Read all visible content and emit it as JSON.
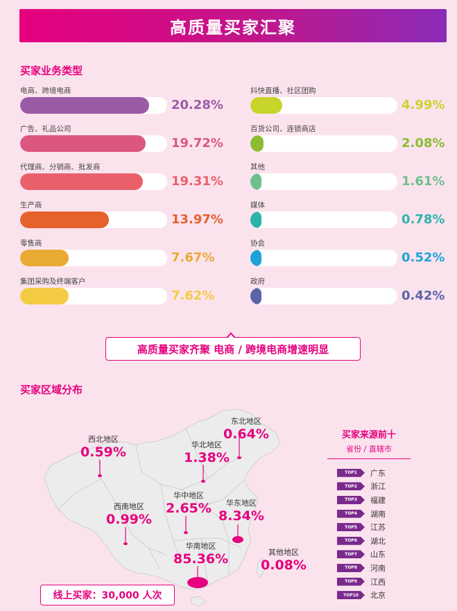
{
  "banner_title": "高质量买家汇聚",
  "section1_title": "买家业务类型",
  "section2_title": "买家区域分布",
  "callout_text": "高质量买家齐聚  电商 / 跨境电商增速明显",
  "online_text": "线上买家：30,000 人次",
  "chart_data": [
    {
      "type": "bar",
      "orientation": "horizontal",
      "unit": "%",
      "xlim": [
        0,
        22
      ],
      "categories": [
        "电商、跨境电商",
        "广告、礼品公司",
        "代理商、分销商、批发商",
        "生产商",
        "零售商",
        "集团采购及终端客户",
        "抖快直播、社区团购",
        "百货公司、连锁商店",
        "其他",
        "媒体",
        "协会",
        "政府"
      ],
      "values": [
        20.28,
        19.72,
        19.31,
        13.97,
        7.67,
        7.62,
        4.99,
        2.08,
        1.61,
        0.78,
        0.52,
        0.42
      ],
      "labels": [
        "20.28%",
        "19.72%",
        "19.31%",
        "13.97%",
        "7.67%",
        "7.62%",
        "4.99%",
        "2.08%",
        "1.61%",
        "0.78%",
        "0.52%",
        "0.42%"
      ],
      "colors": [
        "#9b5ba5",
        "#db5780",
        "#e9606a",
        "#e5622c",
        "#e9aa33",
        "#f4cc43",
        "#c7d52a",
        "#8cbc31",
        "#6fbf8c",
        "#2db3aa",
        "#1ea3d9",
        "#5b64a6"
      ]
    },
    {
      "type": "map",
      "regions": [
        {
          "name": "东北地区",
          "value": 0.64,
          "label": "0.64%"
        },
        {
          "name": "华北地区",
          "value": 1.38,
          "label": "1.38%"
        },
        {
          "name": "西北地区",
          "value": 0.59,
          "label": "0.59%"
        },
        {
          "name": "华中地区",
          "value": 2.65,
          "label": "2.65%"
        },
        {
          "name": "华东地区",
          "value": 8.34,
          "label": "8.34%"
        },
        {
          "name": "西南地区",
          "value": 0.99,
          "label": "0.99%"
        },
        {
          "name": "华南地区",
          "value": 85.36,
          "label": "85.36%"
        },
        {
          "name": "其他地区",
          "value": 0.08,
          "label": "0.08%"
        }
      ]
    }
  ],
  "top10": {
    "title": "买家来源前十",
    "subtitle": "省份 / 直辖市",
    "items": [
      {
        "rank": "TOP1",
        "name": "广东"
      },
      {
        "rank": "TOP2",
        "name": "浙江"
      },
      {
        "rank": "TOP3",
        "name": "福建"
      },
      {
        "rank": "TOP4",
        "name": "湖南"
      },
      {
        "rank": "TOP5",
        "name": "江苏"
      },
      {
        "rank": "TOP6",
        "name": "湖北"
      },
      {
        "rank": "TOP7",
        "name": "山东"
      },
      {
        "rank": "TOP8",
        "name": "河南"
      },
      {
        "rank": "TOP9",
        "name": "江西"
      },
      {
        "rank": "TOP10",
        "name": "北京"
      }
    ]
  },
  "colors": {
    "accent": "#e6007e",
    "rank_tag": "#7a2a8c",
    "map_fill": "#ececec"
  }
}
